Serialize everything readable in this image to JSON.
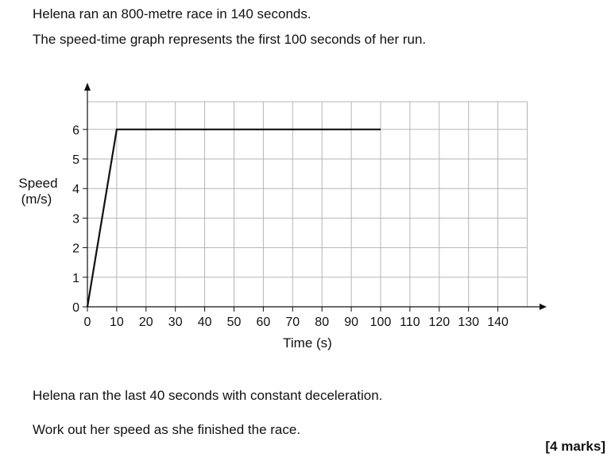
{
  "question": {
    "line1": "Helena ran an 800-metre race in 140 seconds.",
    "line2": "The speed-time graph represents the first 100 seconds of her run.",
    "line3": "Helena ran the last 40 seconds with constant deceleration.",
    "line4": "Work out her speed as she finished the race.",
    "marks": "[4 marks]"
  },
  "chart_data": {
    "type": "line",
    "xlabel": "Time (s)",
    "ylabel_line1": "Speed",
    "ylabel_line2": "(m/s)",
    "xlim": [
      0,
      150
    ],
    "ylim": [
      0,
      7
    ],
    "x_ticks": [
      0,
      10,
      20,
      30,
      40,
      50,
      60,
      70,
      80,
      90,
      100,
      110,
      120,
      130,
      140
    ],
    "y_ticks": [
      0,
      1,
      2,
      3,
      4,
      5,
      6
    ],
    "grid": true,
    "series": [
      {
        "points": [
          [
            0,
            0
          ],
          [
            10,
            6
          ],
          [
            100,
            6
          ]
        ]
      }
    ],
    "colors": {
      "line": "#111111",
      "grid": "#b5b5b5",
      "axis": "#111111"
    }
  }
}
